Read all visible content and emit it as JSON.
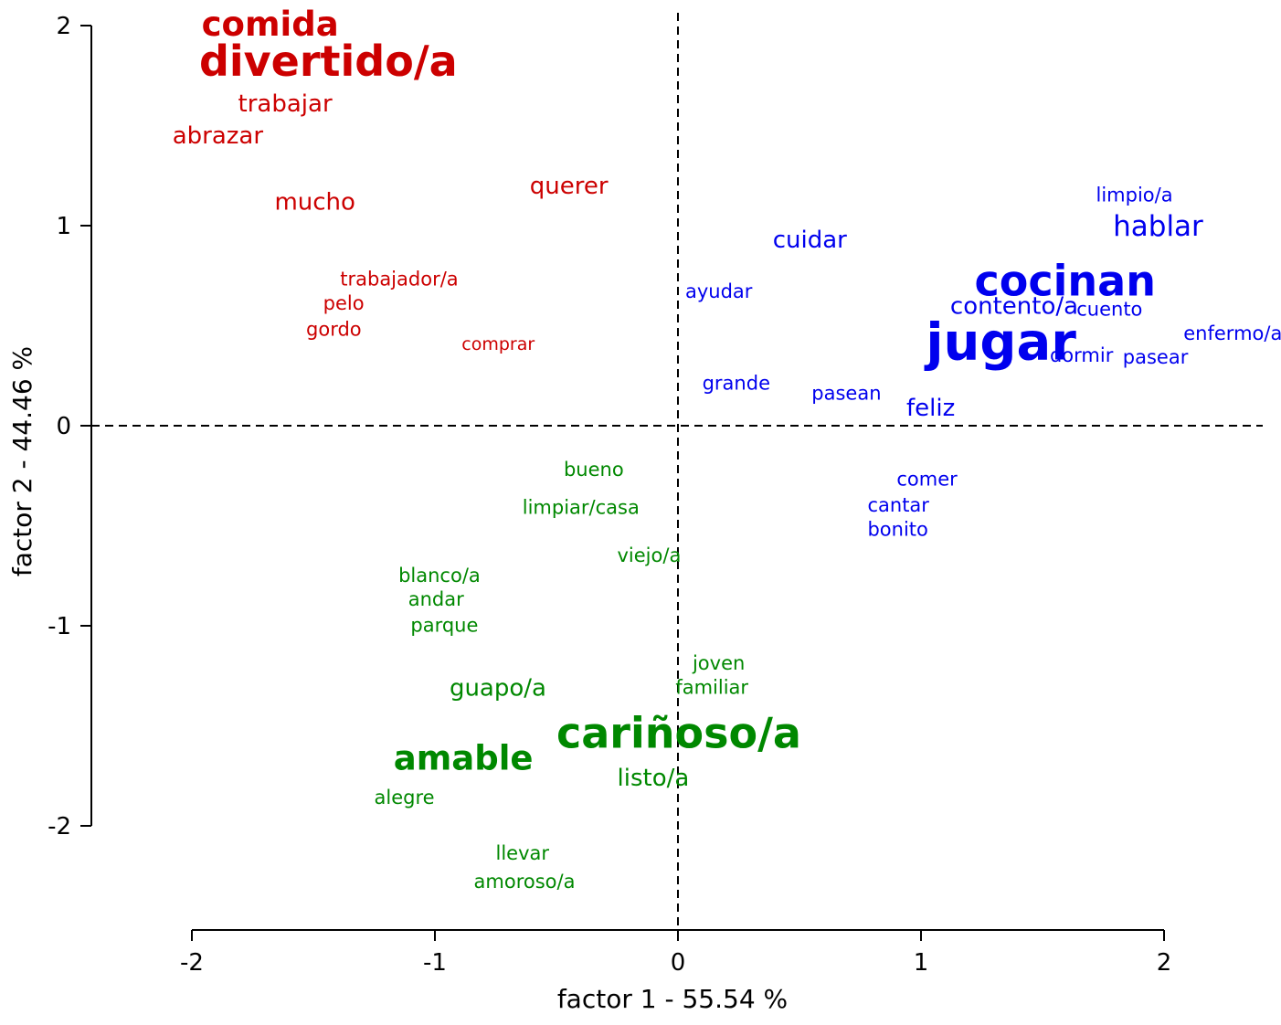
{
  "chart_data": {
    "type": "scatter",
    "title": "",
    "xlabel": "factor 1  -  55.54 %",
    "ylabel": "factor 2  -  44.46 %",
    "xlim": [
      -2,
      2
    ],
    "ylim": [
      -2,
      2
    ],
    "xticks": [
      {
        "value": -2,
        "label": "-2"
      },
      {
        "value": -1,
        "label": "-1"
      },
      {
        "value": 0,
        "label": "0"
      },
      {
        "value": 1,
        "label": "1"
      },
      {
        "value": 2,
        "label": "2"
      }
    ],
    "yticks": [
      {
        "value": -2,
        "label": "-2"
      },
      {
        "value": -1,
        "label": "-1"
      },
      {
        "value": 0,
        "label": "0"
      },
      {
        "value": 1,
        "label": "1"
      },
      {
        "value": 2,
        "label": "2"
      }
    ],
    "grid": false,
    "zero_lines": "dashed",
    "group_colors": {
      "red": "#cc0000",
      "blue": "#0000ee",
      "green": "#008800"
    },
    "points": [
      {
        "label": "comida",
        "x": -1.96,
        "y": 1.95,
        "group": "red",
        "weight": 5
      },
      {
        "label": "divertido/a",
        "x": -1.97,
        "y": 1.75,
        "group": "red",
        "weight": 6
      },
      {
        "label": "trabajar",
        "x": -1.81,
        "y": 1.57,
        "group": "red",
        "weight": 3
      },
      {
        "label": "abrazar",
        "x": -2.08,
        "y": 1.41,
        "group": "red",
        "weight": 3
      },
      {
        "label": "mucho",
        "x": -1.66,
        "y": 1.08,
        "group": "red",
        "weight": 3
      },
      {
        "label": "querer",
        "x": -0.61,
        "y": 1.16,
        "group": "red",
        "weight": 3
      },
      {
        "label": "trabajador/a",
        "x": -1.39,
        "y": 0.7,
        "group": "red",
        "weight": 2
      },
      {
        "label": "pelo",
        "x": -1.46,
        "y": 0.58,
        "group": "red",
        "weight": 2
      },
      {
        "label": "gordo",
        "x": -1.53,
        "y": 0.45,
        "group": "red",
        "weight": 2
      },
      {
        "label": "comprar",
        "x": -0.89,
        "y": 0.38,
        "group": "red",
        "weight": 1
      },
      {
        "label": "limpio/a",
        "x": 1.72,
        "y": 1.12,
        "group": "blue",
        "weight": 2
      },
      {
        "label": "hablar",
        "x": 1.79,
        "y": 0.95,
        "group": "blue",
        "weight": 4
      },
      {
        "label": "cuidar",
        "x": 0.39,
        "y": 0.89,
        "group": "blue",
        "weight": 3
      },
      {
        "label": "cocinan",
        "x": 1.22,
        "y": 0.65,
        "group": "blue",
        "weight": 6
      },
      {
        "label": "ayudar",
        "x": 0.03,
        "y": 0.64,
        "group": "blue",
        "weight": 2
      },
      {
        "label": "contento/a",
        "x": 1.12,
        "y": 0.56,
        "group": "blue",
        "weight": 3
      },
      {
        "label": "cuento",
        "x": 1.64,
        "y": 0.55,
        "group": "blue",
        "weight": 2
      },
      {
        "label": "enfermo/a",
        "x": 2.08,
        "y": 0.43,
        "group": "blue",
        "weight": 2
      },
      {
        "label": "jugar",
        "x": 1.02,
        "y": 0.33,
        "group": "blue",
        "weight": 7
      },
      {
        "label": "dormir",
        "x": 1.53,
        "y": 0.32,
        "group": "blue",
        "weight": 2
      },
      {
        "label": "pasear",
        "x": 1.83,
        "y": 0.31,
        "group": "blue",
        "weight": 2
      },
      {
        "label": "grande",
        "x": 0.1,
        "y": 0.18,
        "group": "blue",
        "weight": 2
      },
      {
        "label": "pasean",
        "x": 0.55,
        "y": 0.13,
        "group": "blue",
        "weight": 2
      },
      {
        "label": "feliz",
        "x": 0.94,
        "y": 0.05,
        "group": "blue",
        "weight": 3
      },
      {
        "label": "comer",
        "x": 0.9,
        "y": -0.3,
        "group": "blue",
        "weight": 2
      },
      {
        "label": "cantar",
        "x": 0.78,
        "y": -0.43,
        "group": "blue",
        "weight": 2
      },
      {
        "label": "bonito",
        "x": 0.78,
        "y": -0.55,
        "group": "blue",
        "weight": 2
      },
      {
        "label": "bueno",
        "x": -0.47,
        "y": -0.25,
        "group": "green",
        "weight": 2
      },
      {
        "label": "limpiar/casa",
        "x": -0.64,
        "y": -0.44,
        "group": "green",
        "weight": 2
      },
      {
        "label": "viejo/a",
        "x": -0.25,
        "y": -0.68,
        "group": "green",
        "weight": 2
      },
      {
        "label": "blanco/a",
        "x": -1.15,
        "y": -0.78,
        "group": "green",
        "weight": 2
      },
      {
        "label": "andar",
        "x": -1.11,
        "y": -0.9,
        "group": "green",
        "weight": 2
      },
      {
        "label": "parque",
        "x": -1.1,
        "y": -1.03,
        "group": "green",
        "weight": 2
      },
      {
        "label": "joven",
        "x": 0.06,
        "y": -1.22,
        "group": "green",
        "weight": 2
      },
      {
        "label": "familiar",
        "x": -0.01,
        "y": -1.34,
        "group": "green",
        "weight": 2
      },
      {
        "label": "guapo/a",
        "x": -0.94,
        "y": -1.35,
        "group": "green",
        "weight": 3
      },
      {
        "label": "cariñoso/a",
        "x": -0.5,
        "y": -1.61,
        "group": "green",
        "weight": 6
      },
      {
        "label": "amable",
        "x": -1.17,
        "y": -1.72,
        "group": "green",
        "weight": 5
      },
      {
        "label": "listo/a",
        "x": -0.25,
        "y": -1.8,
        "group": "green",
        "weight": 3
      },
      {
        "label": "alegre",
        "x": -1.25,
        "y": -1.89,
        "group": "green",
        "weight": 2
      },
      {
        "label": "llevar",
        "x": -0.75,
        "y": -2.17,
        "group": "green",
        "weight": 2
      },
      {
        "label": "amoroso/a",
        "x": -0.84,
        "y": -2.31,
        "group": "green",
        "weight": 2
      }
    ]
  }
}
